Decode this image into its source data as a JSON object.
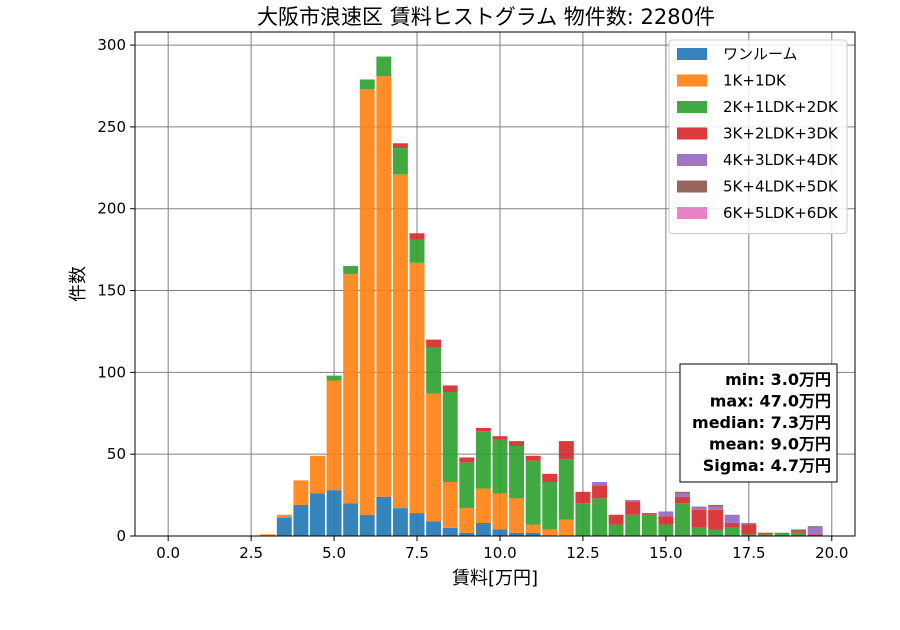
{
  "chart_data": {
    "type": "bar",
    "stacked": true,
    "title": "大阪市浪速区 賃料ヒストグラム  物件数: 2280件",
    "xlabel": "賃料[万円]",
    "ylabel": "件数",
    "xlim": [
      -1.0,
      20.7
    ],
    "ylim": [
      0,
      308
    ],
    "xticks": [
      "0.0",
      "2.5",
      "5.0",
      "7.5",
      "10.0",
      "12.5",
      "15.0",
      "17.5",
      "20.0"
    ],
    "yticks": [
      "0",
      "50",
      "100",
      "150",
      "200",
      "250",
      "300"
    ],
    "grid": true,
    "legend_position": "top-right",
    "bin_width": 0.5,
    "x": [
      3.0,
      3.5,
      4.0,
      4.5,
      5.0,
      5.5,
      6.0,
      6.5,
      7.0,
      7.5,
      8.0,
      8.5,
      9.0,
      9.5,
      10.0,
      10.5,
      11.0,
      11.5,
      12.0,
      12.5,
      13.0,
      13.5,
      14.0,
      14.5,
      15.0,
      15.5,
      16.0,
      16.5,
      17.0,
      17.5,
      18.0,
      18.5,
      19.0,
      19.5
    ],
    "series": [
      {
        "name": "ワンルーム",
        "color": "#1f77b4",
        "values": [
          0,
          11,
          19,
          26,
          28,
          20,
          13,
          24,
          17,
          14,
          9,
          5,
          2,
          8,
          4,
          2,
          2,
          0,
          0,
          0,
          0,
          0,
          0,
          0,
          0,
          0,
          0,
          0,
          0,
          0,
          0,
          0,
          0,
          0
        ]
      },
      {
        "name": "1K+1DK",
        "color": "#ff7f0e",
        "values": [
          1,
          2,
          15,
          23,
          67,
          140,
          260,
          257,
          204,
          153,
          78,
          28,
          15,
          21,
          22,
          21,
          5,
          4,
          10,
          0,
          0,
          0,
          0,
          0,
          0,
          0,
          0,
          0,
          0,
          0,
          0,
          0,
          0,
          0
        ]
      },
      {
        "name": "2K+1LDK+2DK",
        "color": "#2ca02c",
        "values": [
          0,
          0,
          0,
          0,
          3,
          5,
          6,
          12,
          16,
          14,
          28,
          55,
          28,
          35,
          33,
          32,
          39,
          29,
          37,
          20,
          23,
          7,
          13,
          13,
          7,
          20,
          5,
          4,
          5,
          1,
          1,
          2,
          2,
          0
        ]
      },
      {
        "name": "3K+2LDK+3DK",
        "color": "#d62728",
        "values": [
          0,
          0,
          0,
          0,
          0,
          0,
          0,
          0,
          3,
          4,
          5,
          4,
          3,
          2,
          2,
          3,
          3,
          5,
          11,
          7,
          8,
          6,
          8,
          1,
          5,
          4,
          11,
          12,
          3,
          6,
          1,
          0,
          1,
          1
        ]
      },
      {
        "name": "4K+3LDK+4DK",
        "color": "#9467bd",
        "values": [
          0,
          0,
          0,
          0,
          0,
          0,
          0,
          0,
          0,
          0,
          0,
          0,
          0,
          0,
          0,
          0,
          0,
          0,
          0,
          0,
          2,
          0,
          1,
          0,
          3,
          2,
          2,
          2,
          5,
          1,
          0,
          0,
          0,
          4
        ]
      },
      {
        "name": "5K+4LDK+5DK",
        "color": "#8c564b",
        "values": [
          0,
          0,
          0,
          0,
          0,
          0,
          0,
          0,
          0,
          0,
          0,
          0,
          0,
          0,
          0,
          0,
          0,
          0,
          0,
          0,
          0,
          0,
          0,
          0,
          0,
          1,
          0,
          1,
          0,
          0,
          0,
          0,
          1,
          1
        ]
      },
      {
        "name": "6K+5LDK+6DK",
        "color": "#e377c2",
        "values": [
          0,
          0,
          0,
          0,
          0,
          0,
          0,
          0,
          0,
          0,
          0,
          0,
          0,
          0,
          0,
          0,
          0,
          0,
          0,
          0,
          0,
          0,
          0,
          0,
          0,
          0,
          0,
          0,
          0,
          0,
          0,
          0,
          0,
          0
        ]
      }
    ],
    "stats_box": {
      "position": "right",
      "lines": [
        "min: 3.0万円",
        "max: 47.0万円",
        "median: 7.3万円",
        "mean: 9.0万円",
        "Sigma: 4.7万円"
      ]
    }
  }
}
